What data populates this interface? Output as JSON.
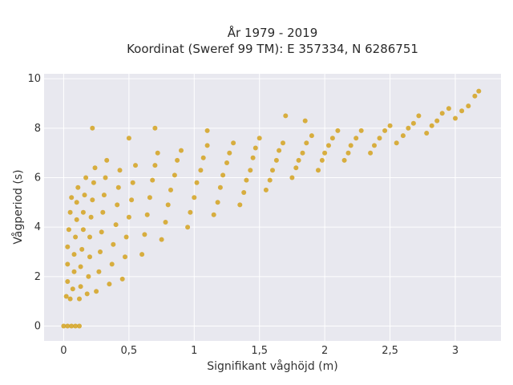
{
  "chart_data": {
    "type": "scatter",
    "title": [
      "År 1979 - 2019",
      "Koordinat (Sweref 99 TM): E 357334, N 6286751"
    ],
    "xlabel": "Signifikant våghöjd (m)",
    "ylabel": "Vågperiod (s)",
    "xlim": [
      -0.15,
      3.35
    ],
    "ylim": [
      -0.6,
      10.2
    ],
    "xticks": [
      {
        "value": 0,
        "label": "0"
      },
      {
        "value": 0.5,
        "label": "0,5"
      },
      {
        "value": 1,
        "label": "1"
      },
      {
        "value": 1.5,
        "label": "1,5"
      },
      {
        "value": 2,
        "label": "2"
      },
      {
        "value": 2.5,
        "label": "2,5"
      },
      {
        "value": 3,
        "label": "3"
      }
    ],
    "yticks": [
      {
        "value": 0,
        "label": "0"
      },
      {
        "value": 2,
        "label": "2"
      },
      {
        "value": 4,
        "label": "4"
      },
      {
        "value": 6,
        "label": "6"
      },
      {
        "value": 8,
        "label": "8"
      },
      {
        "value": 10,
        "label": "10"
      }
    ],
    "grid": true,
    "marker_color": "#d4a21f",
    "background_color": "#e8e8ef",
    "series": [
      {
        "points": [
          [
            0.0,
            0.0
          ],
          [
            0.03,
            0.0
          ],
          [
            0.06,
            0.0
          ],
          [
            0.09,
            0.0
          ],
          [
            0.12,
            0.0
          ],
          [
            0.02,
            1.2
          ],
          [
            0.03,
            1.8
          ],
          [
            0.03,
            2.5
          ],
          [
            0.03,
            3.2
          ],
          [
            0.04,
            3.9
          ],
          [
            0.05,
            4.6
          ],
          [
            0.06,
            5.2
          ],
          [
            0.05,
            1.1
          ],
          [
            0.07,
            1.5
          ],
          [
            0.08,
            2.2
          ],
          [
            0.08,
            2.9
          ],
          [
            0.09,
            3.6
          ],
          [
            0.1,
            4.3
          ],
          [
            0.1,
            5.0
          ],
          [
            0.11,
            5.6
          ],
          [
            0.12,
            1.1
          ],
          [
            0.13,
            1.6
          ],
          [
            0.13,
            2.4
          ],
          [
            0.14,
            3.1
          ],
          [
            0.15,
            3.9
          ],
          [
            0.15,
            4.6
          ],
          [
            0.16,
            5.3
          ],
          [
            0.17,
            6.0
          ],
          [
            0.18,
            1.3
          ],
          [
            0.19,
            2.0
          ],
          [
            0.2,
            2.8
          ],
          [
            0.2,
            3.6
          ],
          [
            0.21,
            4.4
          ],
          [
            0.22,
            5.1
          ],
          [
            0.23,
            5.8
          ],
          [
            0.24,
            6.4
          ],
          [
            0.25,
            1.4
          ],
          [
            0.27,
            2.2
          ],
          [
            0.28,
            3.0
          ],
          [
            0.29,
            3.8
          ],
          [
            0.3,
            4.6
          ],
          [
            0.31,
            5.3
          ],
          [
            0.32,
            6.0
          ],
          [
            0.33,
            6.7
          ],
          [
            0.22,
            8.0
          ],
          [
            0.35,
            1.7
          ],
          [
            0.37,
            2.5
          ],
          [
            0.38,
            3.3
          ],
          [
            0.4,
            4.1
          ],
          [
            0.41,
            4.9
          ],
          [
            0.42,
            5.6
          ],
          [
            0.43,
            6.3
          ],
          [
            0.45,
            1.9
          ],
          [
            0.47,
            2.8
          ],
          [
            0.48,
            3.6
          ],
          [
            0.5,
            4.4
          ],
          [
            0.52,
            5.1
          ],
          [
            0.53,
            5.8
          ],
          [
            0.55,
            6.5
          ],
          [
            0.5,
            7.6
          ],
          [
            0.6,
            2.9
          ],
          [
            0.62,
            3.7
          ],
          [
            0.64,
            4.5
          ],
          [
            0.66,
            5.2
          ],
          [
            0.68,
            5.9
          ],
          [
            0.7,
            6.5
          ],
          [
            0.72,
            7.0
          ],
          [
            0.7,
            8.0
          ],
          [
            0.75,
            3.5
          ],
          [
            0.78,
            4.2
          ],
          [
            0.8,
            4.9
          ],
          [
            0.82,
            5.5
          ],
          [
            0.85,
            6.1
          ],
          [
            0.87,
            6.7
          ],
          [
            0.9,
            7.1
          ],
          [
            0.95,
            4.0
          ],
          [
            0.97,
            4.6
          ],
          [
            1.0,
            5.2
          ],
          [
            1.02,
            5.8
          ],
          [
            1.05,
            6.3
          ],
          [
            1.07,
            6.8
          ],
          [
            1.1,
            7.3
          ],
          [
            1.1,
            7.9
          ],
          [
            1.15,
            4.5
          ],
          [
            1.18,
            5.0
          ],
          [
            1.2,
            5.6
          ],
          [
            1.22,
            6.1
          ],
          [
            1.25,
            6.6
          ],
          [
            1.27,
            7.0
          ],
          [
            1.3,
            7.4
          ],
          [
            1.35,
            4.9
          ],
          [
            1.38,
            5.4
          ],
          [
            1.4,
            5.9
          ],
          [
            1.43,
            6.3
          ],
          [
            1.45,
            6.8
          ],
          [
            1.47,
            7.2
          ],
          [
            1.5,
            7.6
          ],
          [
            1.55,
            5.5
          ],
          [
            1.58,
            5.9
          ],
          [
            1.6,
            6.3
          ],
          [
            1.63,
            6.7
          ],
          [
            1.65,
            7.1
          ],
          [
            1.68,
            7.4
          ],
          [
            1.7,
            8.5
          ],
          [
            1.75,
            6.0
          ],
          [
            1.78,
            6.4
          ],
          [
            1.8,
            6.7
          ],
          [
            1.83,
            7.0
          ],
          [
            1.86,
            7.4
          ],
          [
            1.9,
            7.7
          ],
          [
            1.85,
            8.3
          ],
          [
            1.95,
            6.3
          ],
          [
            1.98,
            6.7
          ],
          [
            2.0,
            7.0
          ],
          [
            2.03,
            7.3
          ],
          [
            2.06,
            7.6
          ],
          [
            2.1,
            7.9
          ],
          [
            2.15,
            6.7
          ],
          [
            2.18,
            7.0
          ],
          [
            2.2,
            7.3
          ],
          [
            2.24,
            7.6
          ],
          [
            2.28,
            7.9
          ],
          [
            2.35,
            7.0
          ],
          [
            2.38,
            7.3
          ],
          [
            2.42,
            7.6
          ],
          [
            2.46,
            7.9
          ],
          [
            2.5,
            8.1
          ],
          [
            2.55,
            7.4
          ],
          [
            2.6,
            7.7
          ],
          [
            2.64,
            8.0
          ],
          [
            2.68,
            8.2
          ],
          [
            2.72,
            8.5
          ],
          [
            2.78,
            7.8
          ],
          [
            2.82,
            8.1
          ],
          [
            2.86,
            8.3
          ],
          [
            2.9,
            8.6
          ],
          [
            2.95,
            8.8
          ],
          [
            3.0,
            8.4
          ],
          [
            3.05,
            8.7
          ],
          [
            3.1,
            8.9
          ],
          [
            3.15,
            9.3
          ],
          [
            3.18,
            9.5
          ]
        ]
      }
    ]
  }
}
